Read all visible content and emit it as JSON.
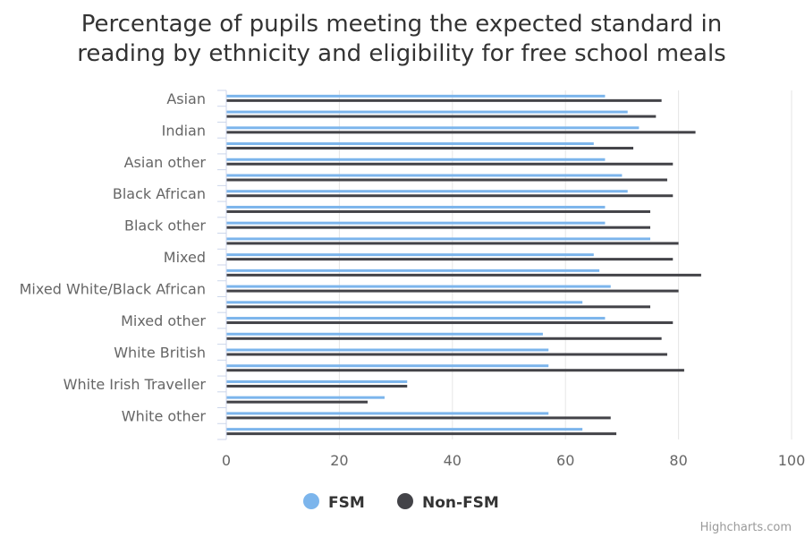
{
  "chart_data": {
    "type": "bar",
    "orientation": "horizontal",
    "title": "Percentage of pupils meeting the expected standard in reading by ethnicity and eligibility for free school meals",
    "title_lines": [
      "Percentage of pupils meeting the expected standard in",
      "reading by ethnicity and eligibility for free school meals"
    ],
    "categories": [
      "Asian",
      "",
      "Indian",
      "",
      "Asian other",
      "",
      "Black African",
      "",
      "Black other",
      "",
      "Mixed",
      "",
      "Mixed White/Black African",
      "",
      "Mixed other",
      "",
      "White British",
      "",
      "White Irish Traveller",
      "",
      "White other",
      ""
    ],
    "series": [
      {
        "name": "FSM",
        "color": "#7cb5ec",
        "values": [
          67,
          71,
          73,
          65,
          67,
          70,
          71,
          67,
          67,
          75,
          65,
          66,
          68,
          63,
          67,
          56,
          57,
          57,
          32,
          28,
          57,
          63
        ]
      },
      {
        "name": "Non-FSM",
        "color": "#434348",
        "values": [
          77,
          76,
          83,
          72,
          79,
          78,
          79,
          75,
          75,
          80,
          79,
          84,
          80,
          75,
          79,
          77,
          78,
          81,
          32,
          25,
          68,
          69
        ]
      }
    ],
    "xaxis": {
      "min": 0,
      "max": 100,
      "ticks": [
        0,
        20,
        40,
        60,
        80,
        100
      ]
    },
    "grid": true,
    "legend_position": "bottom-center",
    "credit": "Highcharts.com"
  }
}
